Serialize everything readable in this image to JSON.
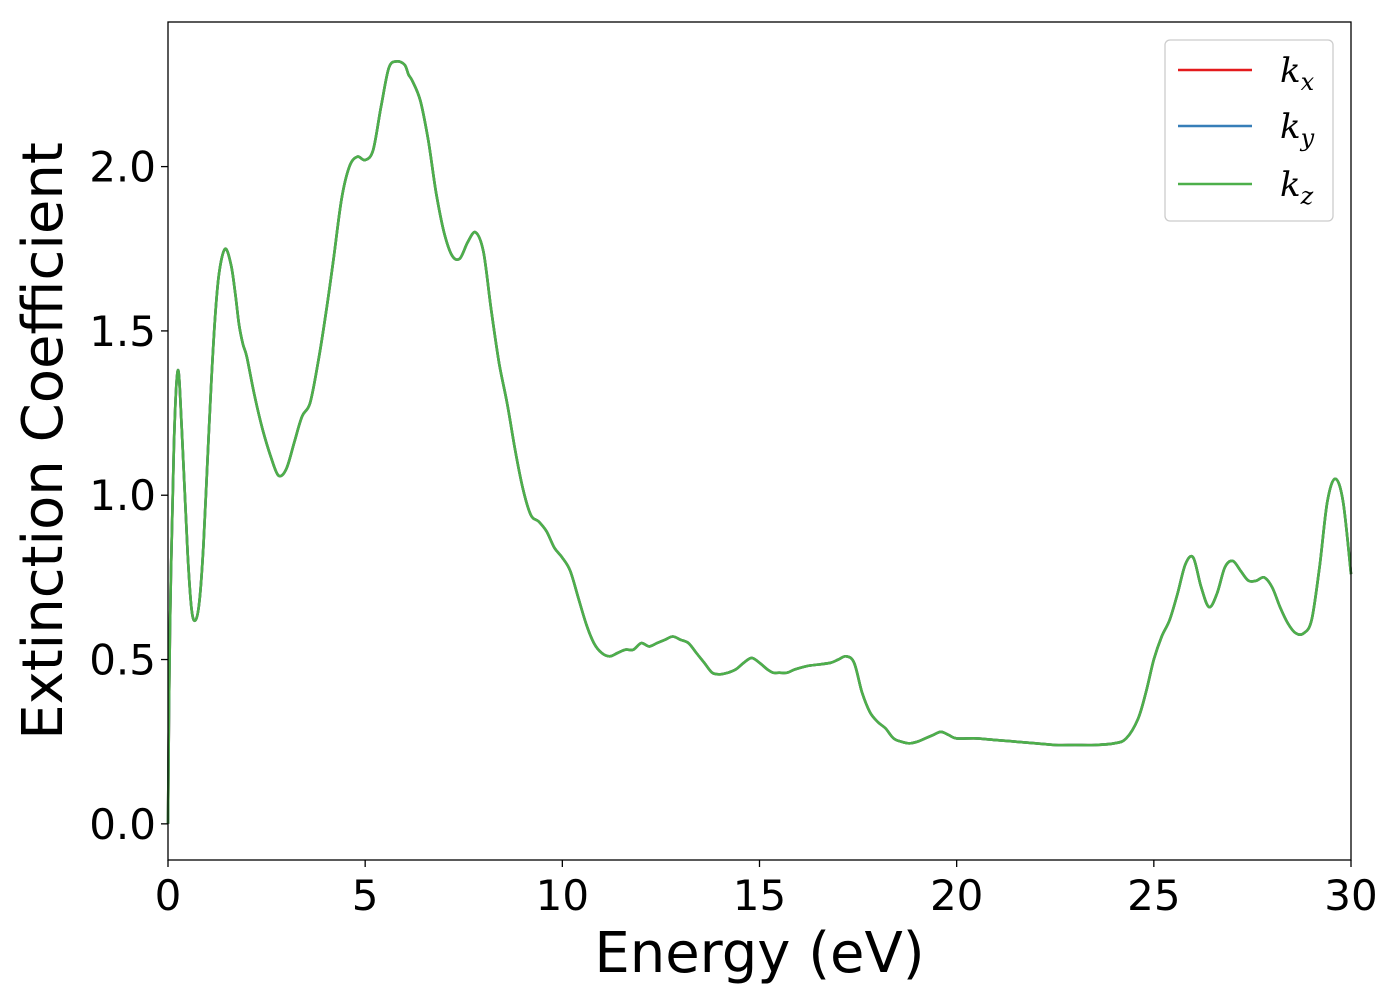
{
  "chart_data": {
    "type": "line",
    "title": "",
    "xlabel": "Energy (eV)",
    "ylabel": "Extinction Coefficient",
    "xlim": [
      0,
      30
    ],
    "ylim": [
      -0.11,
      2.44
    ],
    "xticks": [
      0,
      5,
      10,
      15,
      20,
      25,
      30
    ],
    "xtick_labels": [
      "0",
      "5",
      "10",
      "15",
      "20",
      "25",
      "30"
    ],
    "yticks": [
      0.0,
      0.5,
      1.0,
      1.5,
      2.0
    ],
    "ytick_labels": [
      "0.0",
      "0.5",
      "1.0",
      "1.5",
      "2.0"
    ],
    "grid": false,
    "legend_position": "top-right",
    "colors": {
      "kx": "#e41a1c",
      "ky": "#377eb8",
      "kz": "#4daf4a"
    },
    "series": [
      {
        "id": "kx",
        "name": "k",
        "sub": "x",
        "color": "#e41a1c"
      },
      {
        "id": "ky",
        "name": "k",
        "sub": "y",
        "color": "#377eb8"
      },
      {
        "id": "kz",
        "name": "k",
        "sub": "z",
        "color": "#4daf4a"
      }
    ],
    "x": [
      0,
      0.05,
      0.15,
      0.25,
      0.35,
      0.5,
      0.6,
      0.7,
      0.8,
      0.9,
      1.0,
      1.1,
      1.2,
      1.3,
      1.45,
      1.6,
      1.7,
      1.8,
      1.9,
      2.0,
      2.2,
      2.4,
      2.6,
      2.8,
      3.0,
      3.2,
      3.4,
      3.6,
      3.8,
      4.0,
      4.2,
      4.4,
      4.6,
      4.8,
      5.0,
      5.2,
      5.4,
      5.6,
      5.8,
      6.0,
      6.1,
      6.2,
      6.4,
      6.6,
      6.8,
      7.0,
      7.2,
      7.4,
      7.6,
      7.8,
      8.0,
      8.2,
      8.4,
      8.6,
      8.8,
      9.0,
      9.2,
      9.4,
      9.6,
      9.8,
      10.0,
      10.2,
      10.4,
      10.6,
      10.8,
      11.0,
      11.2,
      11.4,
      11.6,
      11.8,
      12.0,
      12.2,
      12.4,
      12.6,
      12.8,
      13.0,
      13.2,
      13.4,
      13.6,
      13.8,
      14.0,
      14.2,
      14.4,
      14.6,
      14.8,
      15.0,
      15.2,
      15.35,
      15.5,
      15.7,
      15.9,
      16.2,
      16.5,
      16.8,
      17.0,
      17.2,
      17.4,
      17.6,
      17.8,
      18.0,
      18.2,
      18.4,
      18.6,
      18.8,
      19.0,
      19.2,
      19.4,
      19.6,
      19.8,
      20.0,
      20.5,
      21.0,
      21.5,
      22.0,
      22.5,
      23.0,
      23.5,
      24.0,
      24.3,
      24.6,
      24.8,
      25.0,
      25.2,
      25.4,
      25.6,
      25.8,
      26.0,
      26.2,
      26.4,
      26.6,
      26.8,
      27.0,
      27.2,
      27.4,
      27.6,
      27.8,
      28.0,
      28.2,
      28.4,
      28.6,
      28.8,
      29.0,
      29.2,
      29.4,
      29.6,
      29.8,
      30.0
    ],
    "values": [
      0,
      0.6,
      1.15,
      1.38,
      1.2,
      0.82,
      0.65,
      0.62,
      0.68,
      0.85,
      1.1,
      1.35,
      1.55,
      1.68,
      1.75,
      1.7,
      1.62,
      1.52,
      1.46,
      1.42,
      1.3,
      1.2,
      1.12,
      1.06,
      1.08,
      1.16,
      1.24,
      1.28,
      1.4,
      1.55,
      1.72,
      1.9,
      2.0,
      2.03,
      2.02,
      2.05,
      2.18,
      2.3,
      2.32,
      2.31,
      2.28,
      2.26,
      2.2,
      2.08,
      1.92,
      1.8,
      1.73,
      1.72,
      1.77,
      1.8,
      1.74,
      1.56,
      1.4,
      1.28,
      1.14,
      1.02,
      0.94,
      0.92,
      0.89,
      0.84,
      0.81,
      0.77,
      0.69,
      0.61,
      0.55,
      0.52,
      0.51,
      0.52,
      0.53,
      0.53,
      0.55,
      0.54,
      0.55,
      0.56,
      0.57,
      0.56,
      0.55,
      0.52,
      0.49,
      0.46,
      0.455,
      0.46,
      0.47,
      0.49,
      0.505,
      0.49,
      0.47,
      0.46,
      0.46,
      0.46,
      0.47,
      0.48,
      0.485,
      0.49,
      0.5,
      0.51,
      0.49,
      0.4,
      0.34,
      0.31,
      0.29,
      0.26,
      0.25,
      0.245,
      0.25,
      0.26,
      0.27,
      0.28,
      0.27,
      0.26,
      0.26,
      0.255,
      0.25,
      0.245,
      0.24,
      0.24,
      0.24,
      0.245,
      0.26,
      0.32,
      0.4,
      0.5,
      0.57,
      0.62,
      0.7,
      0.79,
      0.81,
      0.72,
      0.66,
      0.7,
      0.78,
      0.8,
      0.77,
      0.74,
      0.74,
      0.75,
      0.72,
      0.66,
      0.61,
      0.58,
      0.58,
      0.62,
      0.78,
      0.98,
      1.05,
      0.98,
      0.76
    ]
  }
}
